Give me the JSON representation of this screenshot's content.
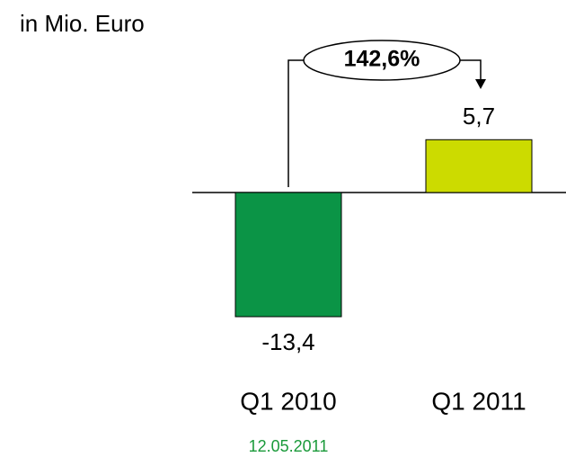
{
  "chart_data": {
    "type": "bar",
    "subtitle": "in Mio. Euro",
    "categories": [
      "Q1 2010",
      "Q1 2011"
    ],
    "values": [
      -13.4,
      5.7
    ],
    "value_labels": [
      "-13,4",
      "5,7"
    ],
    "colors": [
      "#0b9446",
      "#ccdb00"
    ],
    "annotation": "142,6%",
    "footer": "12.05.2011"
  }
}
